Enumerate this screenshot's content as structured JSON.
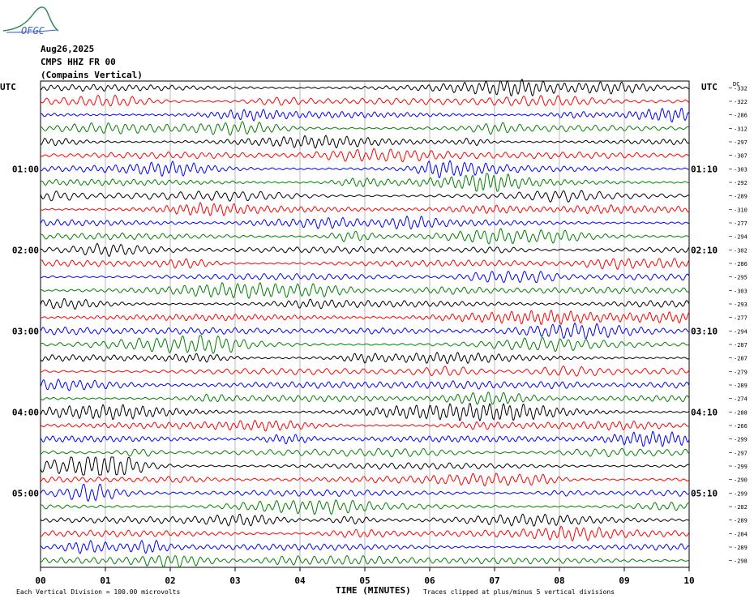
{
  "header": {
    "logo_text": "OFGC",
    "date": "Aug26,2025",
    "station": "CMPS HHZ FR 00",
    "location": "(Compains Vertical)"
  },
  "chart_data": {
    "type": "line",
    "title": "Aug26,2025",
    "xlabel": "TIME (MINUTES)",
    "ylabel": "UTC",
    "right_ylabel": "UTC",
    "dc_label": "DC",
    "xlim": [
      0,
      10
    ],
    "x_ticks": [
      "00",
      "01",
      "02",
      "03",
      "04",
      "05",
      "06",
      "07",
      "08",
      "09",
      "10"
    ],
    "grid": true,
    "trace_colors": [
      "#000000",
      "#ff0000",
      "#0000ff",
      "#008000"
    ],
    "left_time_labels": [
      {
        "row": 6,
        "label": "01:00"
      },
      {
        "row": 12,
        "label": "02:00"
      },
      {
        "row": 18,
        "label": "03:00"
      },
      {
        "row": 24,
        "label": "04:00"
      },
      {
        "row": 30,
        "label": "05:00"
      }
    ],
    "right_time_labels": [
      {
        "row": 6,
        "label": "01:10"
      },
      {
        "row": 12,
        "label": "02:10"
      },
      {
        "row": 18,
        "label": "03:10"
      },
      {
        "row": 24,
        "label": "04:10"
      },
      {
        "row": 30,
        "label": "05:10"
      }
    ],
    "dc_offsets": [
      "-332",
      "-322",
      "-286",
      "-312",
      "-297",
      "-307",
      "-303",
      "-292",
      "-289",
      "-310",
      "-277",
      "-294",
      "-302",
      "-286",
      "-295",
      "-303",
      "-293",
      "-277",
      "-294",
      "-287",
      "-287",
      "-279",
      "-289",
      "-274",
      "-288",
      "-266",
      "-299",
      "-297",
      "-299",
      "-290",
      "-299",
      "-282",
      "-289",
      "-284",
      "-289",
      "-298"
    ],
    "footnote_scale": "Each Vertical Division =  100.00 microvolts",
    "footnote_clip": "Traces clipped at plus/minus 5 vertical divisions"
  }
}
